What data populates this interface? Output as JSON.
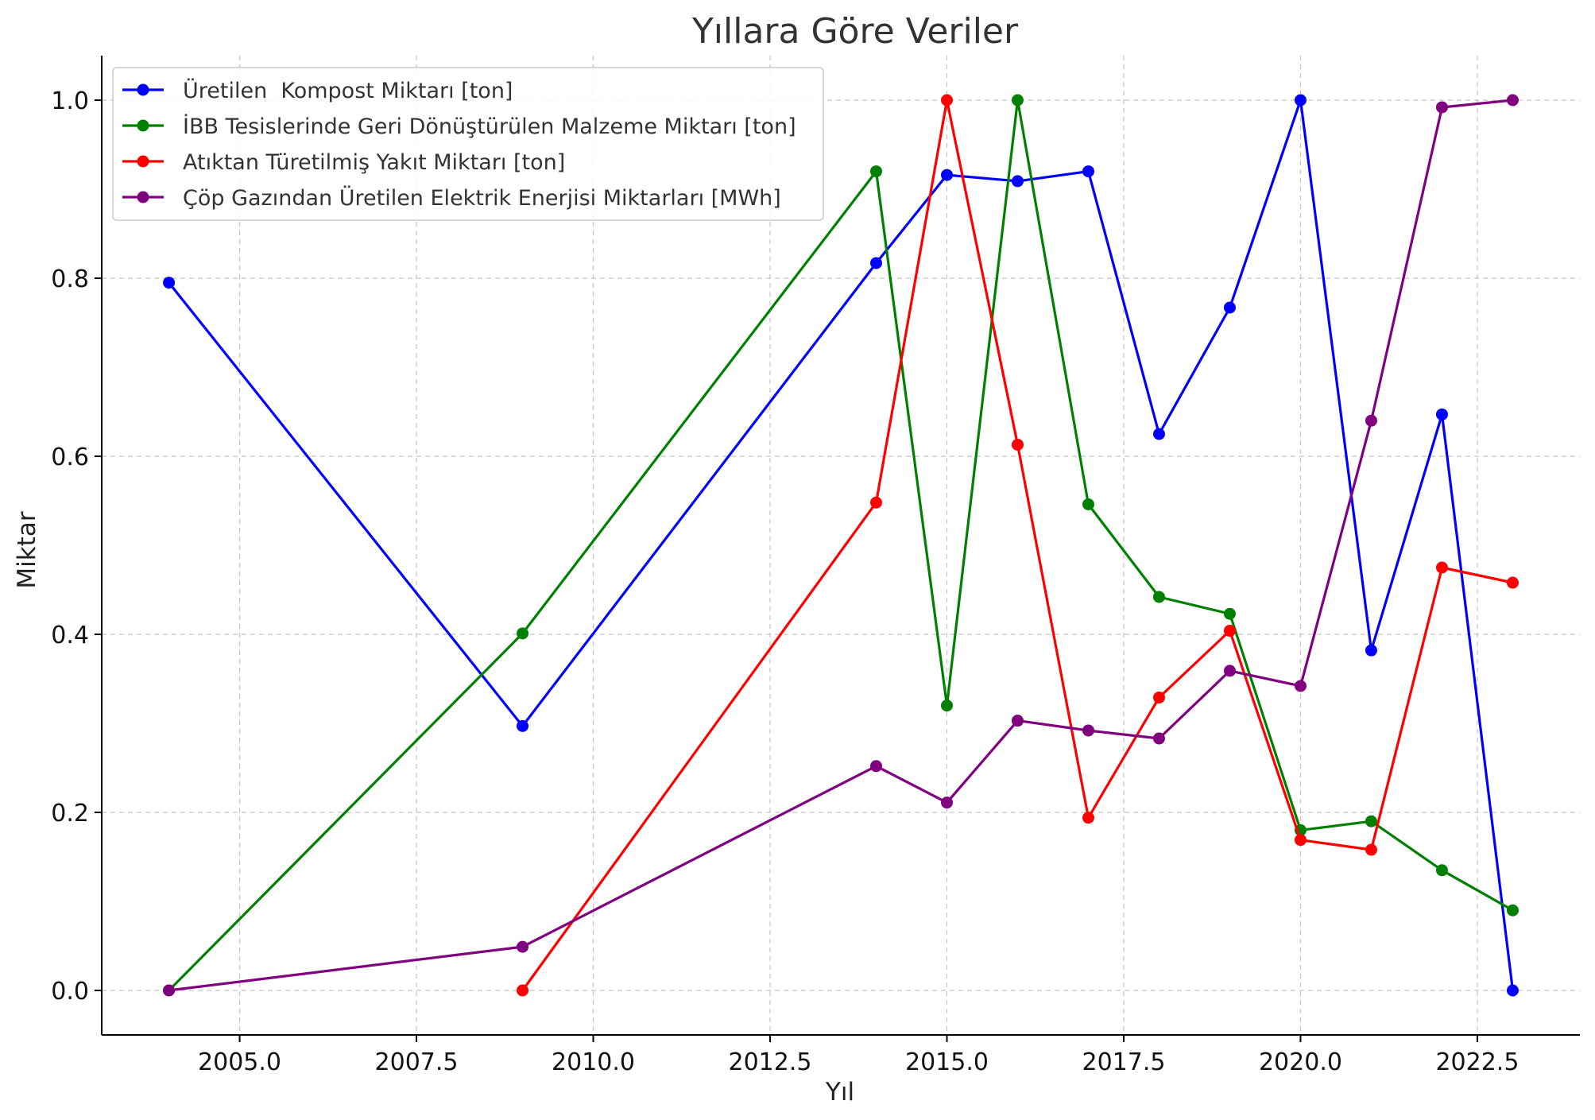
{
  "chart_data": {
    "type": "line",
    "title": "Yıllara Göre Veriler",
    "xlabel": "Yıl",
    "ylabel": "Miktar",
    "xlim": [
      2003.05,
      2023.95
    ],
    "ylim": [
      -0.05,
      1.05
    ],
    "xticks": [
      2005,
      2007.5,
      2010,
      2012.5,
      2015,
      2017.5,
      2020,
      2022.5
    ],
    "xtick_labels": [
      "2005.0",
      "2007.5",
      "2010.0",
      "2012.5",
      "2015.0",
      "2017.5",
      "2020.0",
      "2022.5"
    ],
    "yticks": [
      0,
      0.2,
      0.4,
      0.6,
      0.8,
      1.0
    ],
    "ytick_labels": [
      "0.0",
      "0.2",
      "0.4",
      "0.6",
      "0.8",
      "1.0"
    ],
    "grid": true,
    "legend_position": "top-left",
    "series": [
      {
        "name": "Üretilen  Kompost Miktarı [ton]",
        "color": "#0000ff",
        "x": [
          2004,
          2009,
          2014,
          2015,
          2016,
          2017,
          2018,
          2019,
          2020,
          2021,
          2022,
          2023
        ],
        "y": [
          0.795,
          0.297,
          0.817,
          0.916,
          0.909,
          0.92,
          0.625,
          0.767,
          1.0,
          0.382,
          0.647,
          0.0
        ]
      },
      {
        "name": "İBB Tesislerinde Geri Dönüştürülen Malzeme Miktarı [ton]",
        "color": "#008000",
        "x": [
          2004,
          2009,
          2014,
          2015,
          2016,
          2017,
          2018,
          2019,
          2020,
          2021,
          2022,
          2023
        ],
        "y": [
          0.0,
          0.401,
          0.92,
          0.32,
          1.0,
          0.546,
          0.442,
          0.423,
          0.18,
          0.19,
          0.135,
          0.09
        ]
      },
      {
        "name": "Atıktan Türetilmiş Yakıt Miktarı [ton]",
        "color": "#ff0000",
        "x": [
          2009,
          2014,
          2015,
          2016,
          2017,
          2018,
          2019,
          2020,
          2021,
          2022,
          2023
        ],
        "y": [
          0.0,
          0.548,
          1.0,
          0.613,
          0.194,
          0.329,
          0.404,
          0.169,
          0.158,
          0.475,
          0.458
        ]
      },
      {
        "name": "Çöp Gazından Üretilen Elektrik Enerjisi Miktarları [MWh]",
        "color": "#800080",
        "x": [
          2004,
          2009,
          2014,
          2015,
          2016,
          2017,
          2018,
          2019,
          2020,
          2021,
          2022,
          2023
        ],
        "y": [
          0.0,
          0.049,
          0.252,
          0.211,
          0.303,
          0.292,
          0.283,
          0.359,
          0.342,
          0.64,
          0.992,
          1.0
        ]
      }
    ]
  }
}
